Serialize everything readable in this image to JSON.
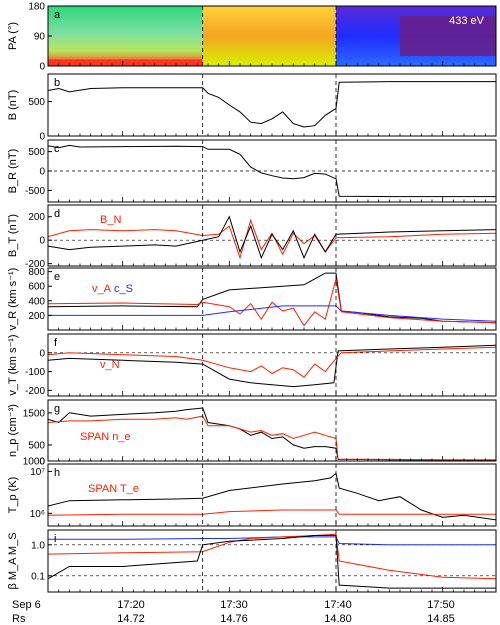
{
  "figure": {
    "xaxis": {
      "row_labels": [
        "Sep 6",
        "Rs"
      ],
      "ticks": [
        {
          "time": "17:20",
          "rs": "14.72"
        },
        {
          "time": "17:30",
          "rs": "14.76"
        },
        {
          "time": "17:40",
          "rs": "14.80"
        },
        {
          "time": "17:50",
          "rs": "14.85"
        }
      ]
    },
    "colors": {
      "black": "#000000",
      "red": "#ff2000",
      "blue": "#1f2cff"
    }
  },
  "chart_data": {
    "type": "line",
    "x_unit": "minutes after 17:00",
    "xlim": [
      13,
      55
    ],
    "event_lines_x": [
      27.5,
      40
    ],
    "panels": [
      {
        "id": "a",
        "type": "heatmap",
        "ylabel": "PA (°)",
        "ylim": [
          0,
          180
        ],
        "yticks": [
          "0",
          "90",
          "180"
        ],
        "annotation": "433 eV",
        "segments": [
          {
            "x": [
              13,
              27.5
            ],
            "pattern": "green-yellow, red band near 0–20°"
          },
          {
            "x": [
              27.5,
              40
            ],
            "pattern": "yellow-orange with green"
          },
          {
            "x": [
              40,
              55
            ],
            "pattern": "blue-purple"
          }
        ]
      },
      {
        "id": "b",
        "ylabel": "B (nT)",
        "ylim": [
          0,
          900
        ],
        "yticks": [
          "0",
          "500"
        ],
        "series": [
          {
            "color": "black",
            "x": [
              13,
              14,
              15,
              17,
              20,
              25,
              27.5,
              28,
              29,
              30,
              31,
              32,
              33,
              34,
              35,
              36,
              37,
              38,
              39,
              40,
              40.3,
              45,
              50,
              55
            ],
            "y": [
              660,
              690,
              640,
              690,
              700,
              700,
              700,
              620,
              560,
              450,
              350,
              200,
              180,
              250,
              350,
              180,
              130,
              150,
              300,
              400,
              780,
              790,
              790,
              790
            ]
          }
        ]
      },
      {
        "id": "c",
        "ylabel": "B_R (nT)",
        "ylim": [
          -800,
          800
        ],
        "yticks": [
          "-500",
          "0",
          "500"
        ],
        "zero_line": true,
        "series": [
          {
            "color": "black",
            "x": [
              13,
              14,
              15,
              16,
              20,
              25,
              27.5,
              28,
              30,
              31,
              32,
              33,
              34,
              35,
              36,
              37,
              38,
              39,
              40,
              40.3,
              45,
              50,
              55
            ],
            "y": [
              650,
              600,
              660,
              620,
              630,
              640,
              630,
              560,
              560,
              430,
              100,
              -50,
              -120,
              -180,
              -200,
              -170,
              -60,
              -80,
              -200,
              -650,
              -660,
              -660,
              -660
            ]
          }
        ]
      },
      {
        "id": "d",
        "ylabel": "B_T (nT)",
        "ylim": [
          -220,
          300
        ],
        "yticks": [
          "-200",
          "0",
          "200"
        ],
        "zero_line": true,
        "label": "B_N",
        "series": [
          {
            "color": "red",
            "x": [
              13,
              15,
              17,
              20,
              23,
              25,
              27.5,
              29,
              30,
              31,
              32,
              33,
              34,
              35,
              36,
              37,
              38,
              39,
              40,
              45,
              50,
              55
            ],
            "y": [
              30,
              80,
              90,
              80,
              90,
              80,
              40,
              50,
              120,
              -150,
              170,
              -80,
              60,
              -120,
              60,
              -30,
              40,
              -100,
              20,
              30,
              50,
              60
            ]
          },
          {
            "color": "black",
            "x": [
              13,
              15,
              17,
              20,
              23,
              25,
              27.5,
              29,
              30,
              31,
              32,
              33,
              34,
              35,
              36,
              37,
              38,
              39,
              40,
              45,
              50,
              55
            ],
            "y": [
              -50,
              -80,
              -60,
              -50,
              -40,
              -50,
              0,
              30,
              200,
              -100,
              120,
              -150,
              50,
              -80,
              80,
              -150,
              50,
              -100,
              50,
              70,
              80,
              90
            ]
          }
        ]
      },
      {
        "id": "e",
        "ylabel": "v_R (km s⁻¹)",
        "ylim": [
          0,
          850
        ],
        "yticks": [
          "200",
          "400",
          "600",
          "800"
        ],
        "labels": [
          "v_A",
          "c_S"
        ],
        "series": [
          {
            "color": "black",
            "x": [
              13,
              20,
              27,
              27.5,
              30,
              33,
              35,
              37,
              38,
              39,
              40,
              40.5,
              42,
              45,
              48,
              50,
              53,
              55
            ],
            "y": [
              320,
              330,
              320,
              420,
              550,
              580,
              600,
              620,
              700,
              780,
              780,
              260,
              240,
              180,
              160,
              120,
              110,
              100
            ]
          },
          {
            "color": "red",
            "x": [
              13,
              20,
              27,
              27.5,
              30,
              31,
              32,
              33,
              34,
              35,
              36,
              37,
              38,
              39,
              40,
              40.5,
              45,
              50,
              55
            ],
            "y": [
              360,
              370,
              350,
              380,
              320,
              220,
              360,
              150,
              380,
              260,
              300,
              60,
              250,
              150,
              700,
              250,
              170,
              120,
              100
            ]
          },
          {
            "color": "blue",
            "x": [
              13,
              20,
              27.5,
              30,
              35,
              40,
              40.5,
              45,
              50,
              55
            ],
            "y": [
              200,
              200,
              200,
              250,
              330,
              330,
              260,
              200,
              150,
              120
            ]
          }
        ]
      },
      {
        "id": "f",
        "ylabel": "v_T (km s⁻¹)",
        "ylim": [
          -230,
          100
        ],
        "yticks": [
          "-200",
          "-100",
          "0"
        ],
        "zero_line": true,
        "label": "v_N",
        "series": [
          {
            "color": "black",
            "x": [
              13,
              15,
              20,
              25,
              27.5,
              30,
              32,
              34,
              36,
              38,
              39.8,
              40.2,
              45,
              50,
              55
            ],
            "y": [
              -40,
              -30,
              -40,
              -50,
              -60,
              -140,
              -160,
              -170,
              -180,
              -170,
              -160,
              10,
              20,
              30,
              40
            ]
          },
          {
            "color": "red",
            "x": [
              13,
              15,
              20,
              25,
              27.5,
              30,
              32,
              33,
              34,
              35,
              36,
              37,
              38,
              39,
              40,
              40.5,
              45,
              50,
              55
            ],
            "y": [
              -10,
              0,
              -10,
              -20,
              -40,
              -80,
              -100,
              -70,
              -110,
              -80,
              -90,
              -130,
              -60,
              -100,
              -30,
              0,
              10,
              20,
              30
            ]
          }
        ]
      },
      {
        "id": "g",
        "ylabel": "n_p (cm⁻³)",
        "ylim": [
          0,
          1900
        ],
        "yticks": [
          "0",
          "500",
          "1000",
          "1500"
        ],
        "label": "SPAN n_e",
        "series": [
          {
            "color": "black",
            "x": [
              13,
              14,
              15,
              17,
              20,
              23,
              25,
              26,
              27.5,
              28,
              30,
              31,
              32,
              33,
              34,
              35,
              36,
              37,
              38,
              39,
              40,
              40.2,
              45,
              50,
              55
            ],
            "y": [
              1300,
              1200,
              1500,
              1400,
              1450,
              1500,
              1550,
              1600,
              1650,
              1200,
              1100,
              1000,
              800,
              900,
              700,
              750,
              500,
              400,
              450,
              450,
              400,
              50,
              40,
              30,
              30
            ]
          },
          {
            "color": "red",
            "x": [
              13,
              15,
              17,
              20,
              23,
              25,
              26,
              27.5,
              28,
              30,
              31,
              32,
              33,
              34,
              35,
              36,
              37,
              38,
              39,
              40,
              40.2,
              45,
              50,
              55
            ],
            "y": [
              1200,
              1250,
              1250,
              1300,
              1300,
              1350,
              1300,
              1400,
              1100,
              1100,
              1000,
              900,
              950,
              800,
              850,
              700,
              800,
              900,
              800,
              700,
              60,
              50,
              40,
              40
            ]
          }
        ]
      },
      {
        "id": "h",
        "ylabel": "T_p (K)",
        "yscale": "log",
        "ylim": [
          500000,
          15000000
        ],
        "yticks": [
          "10⁶",
          "10⁷"
        ],
        "label": "SPAN T_e",
        "series": [
          {
            "color": "black",
            "x": [
              13,
              15,
              20,
              25,
              27.5,
              30,
              35,
              38,
              39.5,
              40,
              40.3,
              42,
              44,
              46,
              48,
              50,
              52,
              55
            ],
            "y": [
              1500000,
              2000000,
              2100000,
              2200000,
              2300000,
              3500000,
              5000000,
              6000000,
              7000000,
              9000000,
              4000000,
              3000000,
              2000000,
              2500000,
              1200000,
              800000,
              900000,
              700000
            ]
          },
          {
            "color": "red",
            "x": [
              13,
              20,
              27.5,
              30,
              35,
              40,
              40.3,
              45,
              50,
              55
            ],
            "y": [
              900000,
              950000,
              950000,
              1100000,
              1200000,
              1200000,
              950000,
              950000,
              950000,
              950000
            ]
          }
        ]
      },
      {
        "id": "i",
        "ylabel": "β  M_A  M_S",
        "yscale": "log",
        "ylim": [
          0.03,
          3
        ],
        "yticks": [
          "0.1",
          "1.0"
        ],
        "hlines": [
          1.0,
          0.1
        ],
        "series": [
          {
            "color": "blue",
            "x": [
              13,
              20,
              27.5,
              30,
              35,
              40,
              40.3,
              45,
              50,
              55
            ],
            "y": [
              1.5,
              1.5,
              1.6,
              1.6,
              1.8,
              1.8,
              1.1,
              1.0,
              1.0,
              1.0
            ]
          },
          {
            "color": "red",
            "x": [
              13,
              20,
              27.5,
              30,
              32,
              35,
              38,
              40,
              40.3,
              45,
              50,
              55
            ],
            "y": [
              0.5,
              0.55,
              0.6,
              1.2,
              1.6,
              1.8,
              2.0,
              2.2,
              0.3,
              0.15,
              0.09,
              0.08
            ]
          },
          {
            "color": "black",
            "x": [
              13,
              15,
              20,
              27,
              27.5,
              30,
              35,
              38,
              40,
              40.3,
              45,
              50,
              55
            ],
            "y": [
              0.08,
              0.2,
              0.2,
              0.3,
              1.0,
              1.3,
              1.6,
              2.0,
              2.0,
              0.05,
              0.04,
              0.04,
              0.04
            ]
          }
        ]
      }
    ]
  }
}
